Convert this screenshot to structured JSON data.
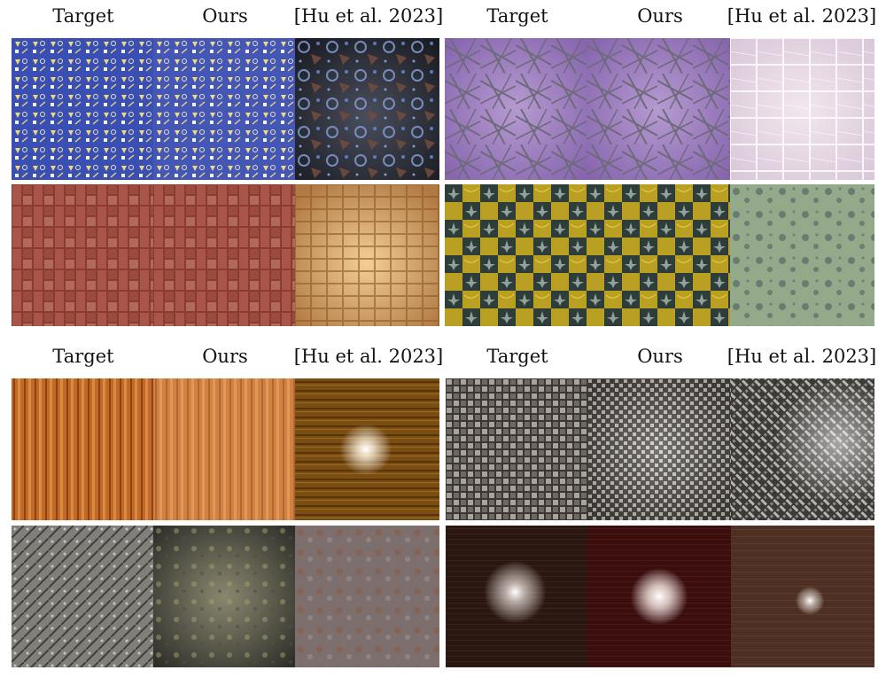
{
  "panels": [
    {
      "headers": [
        "Target",
        "Ours",
        "[Hu et al. 2023]"
      ],
      "rows": [
        [
          "blue-geometric-pattern",
          "blue-geometric-pattern",
          "dark-circles-triangles-pattern"
        ],
        [
          "red-brick-tiles",
          "red-brick-tiles",
          "tan-wooden-blocks"
        ]
      ]
    },
    {
      "headers": [
        "Target",
        "Ours",
        "[Hu et al. 2023]"
      ],
      "rows": [
        [
          "purple-scratched-lines",
          "purple-scratched-lines",
          "pale-pink-grid"
        ],
        [
          "yellow-checker-tiles",
          "yellow-checker-tiles",
          "green-mottled-surface"
        ]
      ]
    },
    {
      "headers": [
        "Target",
        "Ours",
        "[Hu et al. 2023]"
      ],
      "rows": [
        [
          "orange-wood-grain",
          "orange-wood-grain-light",
          "brown-wood-highlight"
        ],
        [
          "gray-rough-stone",
          "dark-gray-rock",
          "brown-gray-rock"
        ]
      ]
    },
    {
      "headers": [
        "Target",
        "Ours",
        "[Hu et al. 2023]"
      ],
      "rows": [
        [
          "woven-basket-gray",
          "woven-basket-fine",
          "woven-diagonal-carbon"
        ],
        [
          "dark-wood-highlight",
          "red-wood-highlight",
          "brown-wood-speckle"
        ]
      ]
    }
  ]
}
